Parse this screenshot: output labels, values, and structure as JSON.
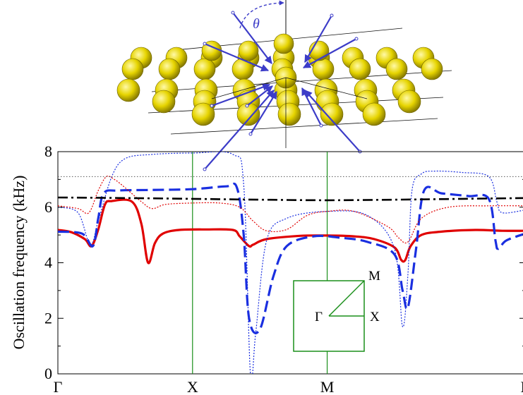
{
  "chart_data": {
    "type": "line",
    "ylabel": "Oscillation frequency (kHz)",
    "xlabel": "",
    "x_ticks": [
      "Γ",
      "X",
      "M",
      "Γ"
    ],
    "x_tick_positions": [
      0,
      1,
      2,
      3.47
    ],
    "xlim": [
      0,
      3.47
    ],
    "y_ticks": [
      "0",
      "2",
      "4",
      "6",
      "8"
    ],
    "ylim": [
      0,
      8
    ],
    "grid": false,
    "series": [
      {
        "style": "solid",
        "color": "#e00000",
        "x": [
          0,
          0.1,
          0.2,
          0.25,
          0.3,
          0.35,
          0.4,
          0.55,
          0.62,
          0.67,
          0.72,
          0.78,
          0.9,
          1.1,
          1.3,
          1.35,
          1.42,
          1.45,
          1.55,
          1.8,
          2.0,
          2.2,
          2.35,
          2.5,
          2.55,
          2.58,
          2.62,
          2.7,
          2.85,
          3.1,
          3.3,
          3.47
        ],
        "y": [
          5.18,
          5.1,
          4.85,
          4.6,
          5.2,
          6.1,
          6.22,
          6.2,
          5.4,
          4.0,
          4.7,
          5.05,
          5.18,
          5.2,
          5.18,
          4.95,
          4.6,
          4.65,
          4.85,
          4.97,
          4.98,
          4.95,
          4.85,
          4.55,
          4.1,
          4.1,
          4.6,
          5.0,
          5.12,
          5.18,
          5.15,
          5.15
        ]
      },
      {
        "style": "dashed",
        "color": "#1a2fe0",
        "x": [
          0,
          0.18,
          0.26,
          0.3,
          0.34,
          0.45,
          0.7,
          1.0,
          1.25,
          1.33,
          1.38,
          1.42,
          1.5,
          1.6,
          1.7,
          1.9,
          2.1,
          2.3,
          2.5,
          2.56,
          2.6,
          2.66,
          2.72,
          2.85,
          3.05,
          3.2,
          3.25,
          3.27,
          3.33,
          3.47
        ],
        "y": [
          5.12,
          5.05,
          4.6,
          5.6,
          6.5,
          6.6,
          6.62,
          6.65,
          6.75,
          6.7,
          5.0,
          2.0,
          1.6,
          3.5,
          4.6,
          4.95,
          4.9,
          4.75,
          4.3,
          3.0,
          2.4,
          4.5,
          6.6,
          6.5,
          6.4,
          6.3,
          4.8,
          4.5,
          4.8,
          5.05
        ]
      },
      {
        "style": "dotted",
        "color": "#1a2fe0",
        "x": [
          0,
          0.15,
          0.24,
          0.3,
          0.4,
          0.5,
          0.7,
          1.0,
          1.3,
          1.38,
          1.43,
          1.47,
          1.55,
          1.7,
          2.0,
          2.3,
          2.5,
          2.56,
          2.6,
          2.63,
          2.7,
          2.8,
          3.0,
          3.2,
          3.26,
          3.3,
          3.47
        ],
        "y": [
          6.0,
          5.8,
          4.65,
          5.5,
          7.1,
          7.75,
          7.9,
          7.95,
          7.9,
          6.8,
          0.0,
          1.5,
          4.8,
          5.6,
          5.85,
          5.7,
          4.5,
          1.7,
          3.6,
          6.6,
          7.2,
          7.3,
          7.25,
          7.1,
          6.2,
          5.8,
          5.9
        ]
      },
      {
        "style": "dotted",
        "color": "#e00000",
        "x": [
          0,
          0.15,
          0.23,
          0.3,
          0.36,
          0.42,
          0.5,
          0.62,
          0.7,
          0.8,
          1.0,
          1.2,
          1.35,
          1.45,
          1.55,
          1.7,
          1.85,
          2.0,
          2.2,
          2.45,
          2.53,
          2.6,
          2.7,
          2.9,
          3.2,
          3.47
        ],
        "y": [
          6.05,
          5.95,
          5.8,
          6.6,
          7.1,
          7.0,
          6.7,
          6.2,
          5.95,
          6.1,
          6.15,
          6.15,
          6.0,
          5.5,
          5.15,
          5.2,
          5.7,
          5.85,
          5.85,
          5.3,
          4.9,
          4.75,
          5.6,
          6.0,
          6.05,
          6.05
        ]
      },
      {
        "style": "dashdot",
        "color": "#000000",
        "x": [
          0,
          0.5,
          1.0,
          1.5,
          2.0,
          2.5,
          3.0,
          3.47
        ],
        "y": [
          6.35,
          6.33,
          6.3,
          6.27,
          6.25,
          6.27,
          6.3,
          6.33
        ]
      },
      {
        "style": "dotted-thin",
        "color": "#555555",
        "x": [
          0,
          3.47
        ],
        "y": [
          7.1,
          7.1
        ]
      }
    ]
  },
  "inset": {
    "labels": {
      "gamma": "Γ",
      "x": "X",
      "m": "M"
    },
    "color": "#1a8f1a"
  },
  "lattice": {
    "theta_label": "θ",
    "sphere_color": "#e6d400",
    "arrow_color": "#3c3cc8"
  }
}
